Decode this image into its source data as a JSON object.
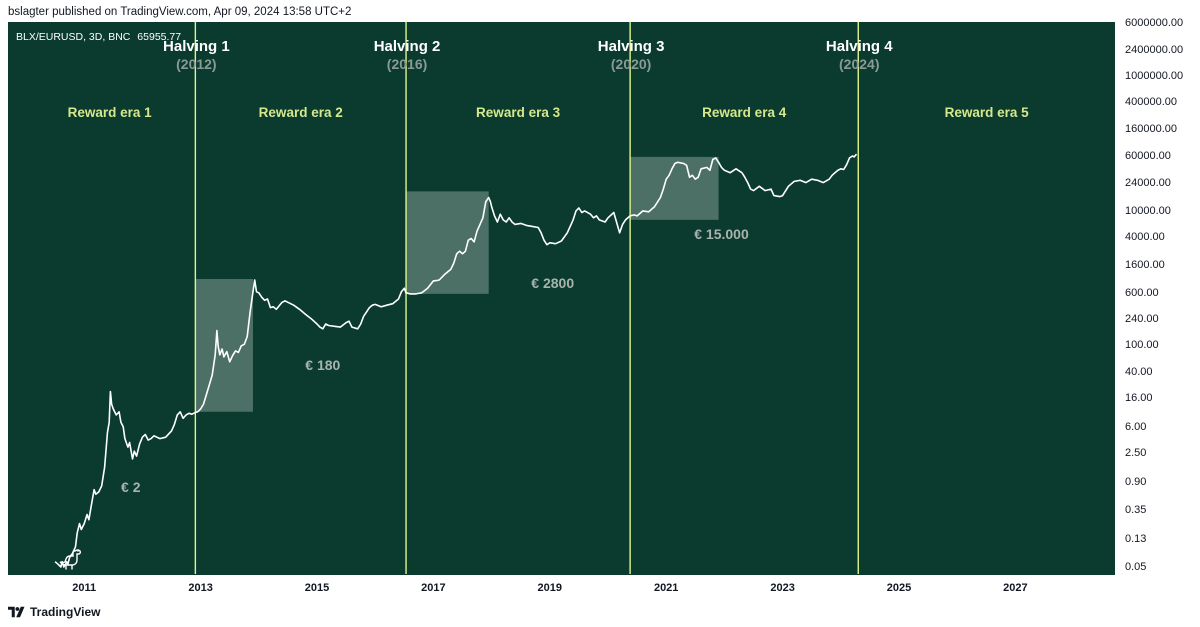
{
  "header": {
    "text": "bslagter published on TradingView.com, Apr 09, 2024 13:58 UTC+2"
  },
  "footer": {
    "brand": "TradingView",
    "logo_icon": "tradingview-logo-icon"
  },
  "colors": {
    "background": "#0a3b2e",
    "price_line": "#ffffff",
    "halving_line": "#e2f58a",
    "era_text": "#d7e88c",
    "highlight_box": "#ffffff"
  },
  "chart_data": {
    "type": "line",
    "symbol": "BLX/EURUSD, 3D, BNC",
    "last_price": "65955.77",
    "y_scale": "log",
    "y_ticks": [
      "6000000.00",
      "2400000.00",
      "1000000.00",
      "400000.00",
      "160000.00",
      "60000.00",
      "24000.00",
      "10000.00",
      "4000.00",
      "1600.00",
      "600.00",
      "240.00",
      "100.00",
      "40.00",
      "16.00",
      "6.00",
      "2.50",
      "0.90",
      "0.35",
      "0.13",
      "0.05"
    ],
    "x_ticks": [
      "2011",
      "2013",
      "2015",
      "2017",
      "2019",
      "2021",
      "2023",
      "2025",
      "2027"
    ],
    "xlim": [
      2010.0,
      2028.0
    ],
    "halvings": [
      {
        "title": "Halving 1",
        "year_label": "(2012)",
        "date": 2012.91
      },
      {
        "title": "Halving 2",
        "year_label": "(2016)",
        "date": 2016.53
      },
      {
        "title": "Halving 3",
        "year_label": "(2020)",
        "date": 2020.38
      },
      {
        "title": "Halving 4",
        "year_label": "(2024)",
        "date": 2024.3
      }
    ],
    "eras": [
      "Reward era 1",
      "Reward era 2",
      "Reward era 3",
      "Reward era 4",
      "Reward era 5"
    ],
    "annotations": [
      {
        "text": "€ 2",
        "x": 2011.8,
        "y": 1.0
      },
      {
        "text": "€ 180",
        "x": 2015.1,
        "y": 65
      },
      {
        "text": "€ 2800",
        "x": 2019.05,
        "y": 1050
      },
      {
        "text": "€ 15.000",
        "x": 2021.95,
        "y": 5600
      }
    ],
    "highlight_boxes": [
      {
        "x0": 2012.91,
        "x1": 2013.9,
        "y0": 10,
        "y1": 930
      },
      {
        "x0": 2016.53,
        "x1": 2017.95,
        "y0": 560,
        "y1": 18500
      },
      {
        "x0": 2020.38,
        "x1": 2021.9,
        "y0": 7000,
        "y1": 60000
      }
    ],
    "series": [
      {
        "points": [
          [
            2010.5,
            0.06
          ],
          [
            2010.55,
            0.055
          ],
          [
            2010.6,
            0.05
          ],
          [
            2010.62,
            0.06
          ],
          [
            2010.65,
            0.05
          ],
          [
            2010.68,
            0.055
          ],
          [
            2010.7,
            0.06
          ],
          [
            2010.72,
            0.055
          ],
          [
            2010.75,
            0.07
          ],
          [
            2010.8,
            0.08
          ],
          [
            2010.85,
            0.1
          ],
          [
            2010.88,
            0.16
          ],
          [
            2010.92,
            0.22
          ],
          [
            2010.95,
            0.18
          ],
          [
            2011.0,
            0.22
          ],
          [
            2011.05,
            0.3
          ],
          [
            2011.08,
            0.25
          ],
          [
            2011.12,
            0.4
          ],
          [
            2011.17,
            0.7
          ],
          [
            2011.2,
            0.6
          ],
          [
            2011.25,
            0.65
          ],
          [
            2011.3,
            0.8
          ],
          [
            2011.35,
            1.5
          ],
          [
            2011.4,
            5
          ],
          [
            2011.43,
            7
          ],
          [
            2011.45,
            20
          ],
          [
            2011.47,
            13
          ],
          [
            2011.5,
            11
          ],
          [
            2011.55,
            9
          ],
          [
            2011.6,
            10
          ],
          [
            2011.63,
            7
          ],
          [
            2011.67,
            6
          ],
          [
            2011.7,
            4
          ],
          [
            2011.75,
            3
          ],
          [
            2011.78,
            3.5
          ],
          [
            2011.83,
            2
          ],
          [
            2011.86,
            2.6
          ],
          [
            2011.9,
            2.2
          ],
          [
            2011.95,
            3.3
          ],
          [
            2012.0,
            4.2
          ],
          [
            2012.05,
            4.6
          ],
          [
            2012.1,
            3.8
          ],
          [
            2012.15,
            4
          ],
          [
            2012.2,
            4.4
          ],
          [
            2012.3,
            4
          ],
          [
            2012.4,
            4.2
          ],
          [
            2012.5,
            5.2
          ],
          [
            2012.55,
            6.5
          ],
          [
            2012.6,
            9
          ],
          [
            2012.65,
            10
          ],
          [
            2012.7,
            8
          ],
          [
            2012.75,
            9
          ],
          [
            2012.8,
            9.5
          ],
          [
            2012.85,
            9.2
          ],
          [
            2012.91,
            9.8
          ],
          [
            2012.95,
            10
          ],
          [
            2013.0,
            11
          ],
          [
            2013.05,
            13
          ],
          [
            2013.1,
            18
          ],
          [
            2013.15,
            25
          ],
          [
            2013.2,
            35
          ],
          [
            2013.25,
            70
          ],
          [
            2013.28,
            160
          ],
          [
            2013.3,
            95
          ],
          [
            2013.33,
            70
          ],
          [
            2013.37,
            85
          ],
          [
            2013.4,
            65
          ],
          [
            2013.45,
            78
          ],
          [
            2013.5,
            55
          ],
          [
            2013.55,
            68
          ],
          [
            2013.6,
            80
          ],
          [
            2013.65,
            76
          ],
          [
            2013.7,
            95
          ],
          [
            2013.75,
            100
          ],
          [
            2013.8,
            130
          ],
          [
            2013.85,
            300
          ],
          [
            2013.9,
            600
          ],
          [
            2013.93,
            900
          ],
          [
            2013.96,
            600
          ],
          [
            2014.0,
            580
          ],
          [
            2014.05,
            500
          ],
          [
            2014.1,
            450
          ],
          [
            2014.15,
            470
          ],
          [
            2014.2,
            350
          ],
          [
            2014.25,
            360
          ],
          [
            2014.3,
            330
          ],
          [
            2014.4,
            420
          ],
          [
            2014.45,
            440
          ],
          [
            2014.5,
            420
          ],
          [
            2014.6,
            380
          ],
          [
            2014.7,
            330
          ],
          [
            2014.8,
            280
          ],
          [
            2014.9,
            240
          ],
          [
            2015.0,
            200
          ],
          [
            2015.05,
            180
          ],
          [
            2015.1,
            170
          ],
          [
            2015.15,
            200
          ],
          [
            2015.2,
            190
          ],
          [
            2015.3,
            185
          ],
          [
            2015.4,
            180
          ],
          [
            2015.5,
            210
          ],
          [
            2015.55,
            220
          ],
          [
            2015.6,
            180
          ],
          [
            2015.7,
            170
          ],
          [
            2015.75,
            200
          ],
          [
            2015.8,
            260
          ],
          [
            2015.85,
            300
          ],
          [
            2015.9,
            350
          ],
          [
            2015.95,
            380
          ],
          [
            2016.0,
            390
          ],
          [
            2016.1,
            360
          ],
          [
            2016.2,
            380
          ],
          [
            2016.3,
            400
          ],
          [
            2016.4,
            470
          ],
          [
            2016.45,
            600
          ],
          [
            2016.5,
            680
          ],
          [
            2016.53,
            580
          ],
          [
            2016.6,
            560
          ],
          [
            2016.7,
            560
          ],
          [
            2016.8,
            580
          ],
          [
            2016.9,
            680
          ],
          [
            2017.0,
            870
          ],
          [
            2017.05,
            880
          ],
          [
            2017.1,
            900
          ],
          [
            2017.2,
            1100
          ],
          [
            2017.3,
            1300
          ],
          [
            2017.35,
            1600
          ],
          [
            2017.4,
            2200
          ],
          [
            2017.45,
            2400
          ],
          [
            2017.5,
            2200
          ],
          [
            2017.55,
            2400
          ],
          [
            2017.6,
            3500
          ],
          [
            2017.65,
            3700
          ],
          [
            2017.7,
            3300
          ],
          [
            2017.75,
            4800
          ],
          [
            2017.8,
            6000
          ],
          [
            2017.85,
            7500
          ],
          [
            2017.9,
            13000
          ],
          [
            2017.95,
            15000
          ],
          [
            2017.98,
            13000
          ],
          [
            2018.0,
            11000
          ],
          [
            2018.05,
            8000
          ],
          [
            2018.1,
            6500
          ],
          [
            2018.15,
            8500
          ],
          [
            2018.2,
            7000
          ],
          [
            2018.25,
            6500
          ],
          [
            2018.3,
            7500
          ],
          [
            2018.35,
            6500
          ],
          [
            2018.4,
            6000
          ],
          [
            2018.5,
            6200
          ],
          [
            2018.6,
            5800
          ],
          [
            2018.7,
            5600
          ],
          [
            2018.8,
            5400
          ],
          [
            2018.85,
            4500
          ],
          [
            2018.9,
            3500
          ],
          [
            2018.95,
            3000
          ],
          [
            2019.0,
            3200
          ],
          [
            2019.1,
            3100
          ],
          [
            2019.2,
            3400
          ],
          [
            2019.3,
            4500
          ],
          [
            2019.4,
            7000
          ],
          [
            2019.45,
            9500
          ],
          [
            2019.5,
            10500
          ],
          [
            2019.55,
            9000
          ],
          [
            2019.6,
            9500
          ],
          [
            2019.7,
            8500
          ],
          [
            2019.75,
            7500
          ],
          [
            2019.8,
            8000
          ],
          [
            2019.85,
            7000
          ],
          [
            2019.95,
            6500
          ],
          [
            2020.0,
            7500
          ],
          [
            2020.1,
            9000
          ],
          [
            2020.2,
            4500
          ],
          [
            2020.25,
            6000
          ],
          [
            2020.3,
            7000
          ],
          [
            2020.38,
            8000
          ],
          [
            2020.45,
            8300
          ],
          [
            2020.5,
            8000
          ],
          [
            2020.6,
            9500
          ],
          [
            2020.7,
            9200
          ],
          [
            2020.8,
            11000
          ],
          [
            2020.9,
            15000
          ],
          [
            2020.95,
            20000
          ],
          [
            2021.0,
            28000
          ],
          [
            2021.05,
            32000
          ],
          [
            2021.1,
            40000
          ],
          [
            2021.15,
            48000
          ],
          [
            2021.2,
            50000
          ],
          [
            2021.3,
            48000
          ],
          [
            2021.35,
            45000
          ],
          [
            2021.4,
            30000
          ],
          [
            2021.45,
            32000
          ],
          [
            2021.5,
            28000
          ],
          [
            2021.55,
            30000
          ],
          [
            2021.6,
            40000
          ],
          [
            2021.7,
            42000
          ],
          [
            2021.75,
            38000
          ],
          [
            2021.8,
            55000
          ],
          [
            2021.85,
            58000
          ],
          [
            2021.9,
            50000
          ],
          [
            2021.95,
            42000
          ],
          [
            2022.0,
            38000
          ],
          [
            2022.1,
            35000
          ],
          [
            2022.2,
            40000
          ],
          [
            2022.3,
            35000
          ],
          [
            2022.35,
            30000
          ],
          [
            2022.4,
            25000
          ],
          [
            2022.45,
            20000
          ],
          [
            2022.5,
            19000
          ],
          [
            2022.6,
            22000
          ],
          [
            2022.7,
            19000
          ],
          [
            2022.8,
            20000
          ],
          [
            2022.85,
            16000
          ],
          [
            2022.95,
            15500
          ],
          [
            2023.0,
            16000
          ],
          [
            2023.1,
            22000
          ],
          [
            2023.2,
            26000
          ],
          [
            2023.3,
            27000
          ],
          [
            2023.4,
            25000
          ],
          [
            2023.5,
            28000
          ],
          [
            2023.6,
            27000
          ],
          [
            2023.7,
            25000
          ],
          [
            2023.8,
            28000
          ],
          [
            2023.85,
            32000
          ],
          [
            2023.9,
            35000
          ],
          [
            2023.95,
            38000
          ],
          [
            2024.0,
            40000
          ],
          [
            2024.05,
            39000
          ],
          [
            2024.1,
            46000
          ],
          [
            2024.15,
            58000
          ],
          [
            2024.2,
            62000
          ],
          [
            2024.23,
            60000
          ],
          [
            2024.27,
            65955.77
          ]
        ]
      }
    ]
  }
}
